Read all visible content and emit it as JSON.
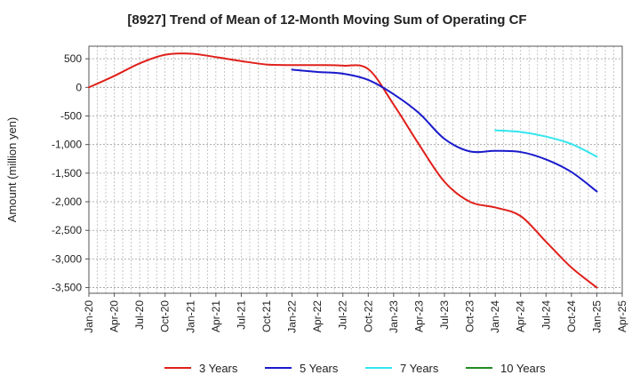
{
  "chart_data": {
    "type": "line",
    "title": "[8927]  Trend of Mean of 12-Month Moving Sum of Operating CF",
    "xlabel": "",
    "ylabel": "Amount (million yen)",
    "ylim": [
      -3600,
      720
    ],
    "yticks": [
      500,
      0,
      -500,
      -1000,
      -1500,
      -2000,
      -2500,
      -3000,
      -3500
    ],
    "ytick_labels": [
      "500",
      "0",
      "-500",
      "-1,000",
      "-1,500",
      "-2,000",
      "-2,500",
      "-3,000",
      "-3,500"
    ],
    "xticks": [
      "Jan-20",
      "Apr-20",
      "Jul-20",
      "Oct-20",
      "Jan-21",
      "Apr-21",
      "Jul-21",
      "Oct-21",
      "Jan-22",
      "Apr-22",
      "Jul-22",
      "Oct-22",
      "Jan-23",
      "Apr-23",
      "Jul-23",
      "Oct-23",
      "Jan-24",
      "Apr-24",
      "Jul-24",
      "Oct-24",
      "Jan-25",
      "Apr-25"
    ],
    "grid": true,
    "legend_position": "bottom",
    "series": [
      {
        "name": "3 Years",
        "color": "#e0201b",
        "points": [
          [
            0,
            0
          ],
          [
            1,
            200
          ],
          [
            2,
            420
          ],
          [
            3,
            570
          ],
          [
            4,
            590
          ],
          [
            5,
            530
          ],
          [
            6,
            460
          ],
          [
            7,
            400
          ],
          [
            8,
            390
          ],
          [
            9,
            390
          ],
          [
            10,
            380
          ],
          [
            11,
            320
          ],
          [
            12,
            -300
          ],
          [
            13,
            -1000
          ],
          [
            14,
            -1650
          ],
          [
            15,
            -2000
          ],
          [
            16,
            -2100
          ],
          [
            17,
            -2250
          ],
          [
            18,
            -2700
          ],
          [
            19,
            -3150
          ],
          [
            20,
            -3500
          ]
        ]
      },
      {
        "name": "5 Years",
        "color": "#1a1acc",
        "points": [
          [
            8,
            310
          ],
          [
            9,
            270
          ],
          [
            10,
            240
          ],
          [
            11,
            130
          ],
          [
            12,
            -120
          ],
          [
            13,
            -450
          ],
          [
            14,
            -900
          ],
          [
            15,
            -1120
          ],
          [
            16,
            -1110
          ],
          [
            17,
            -1130
          ],
          [
            18,
            -1260
          ],
          [
            19,
            -1480
          ],
          [
            20,
            -1820
          ]
        ]
      },
      {
        "name": "7 Years",
        "color": "#33e6ee",
        "points": [
          [
            16,
            -750
          ],
          [
            17,
            -780
          ],
          [
            18,
            -860
          ],
          [
            19,
            -990
          ],
          [
            20,
            -1210
          ]
        ]
      },
      {
        "name": "10 Years",
        "color": "#228b22",
        "points": []
      }
    ]
  }
}
